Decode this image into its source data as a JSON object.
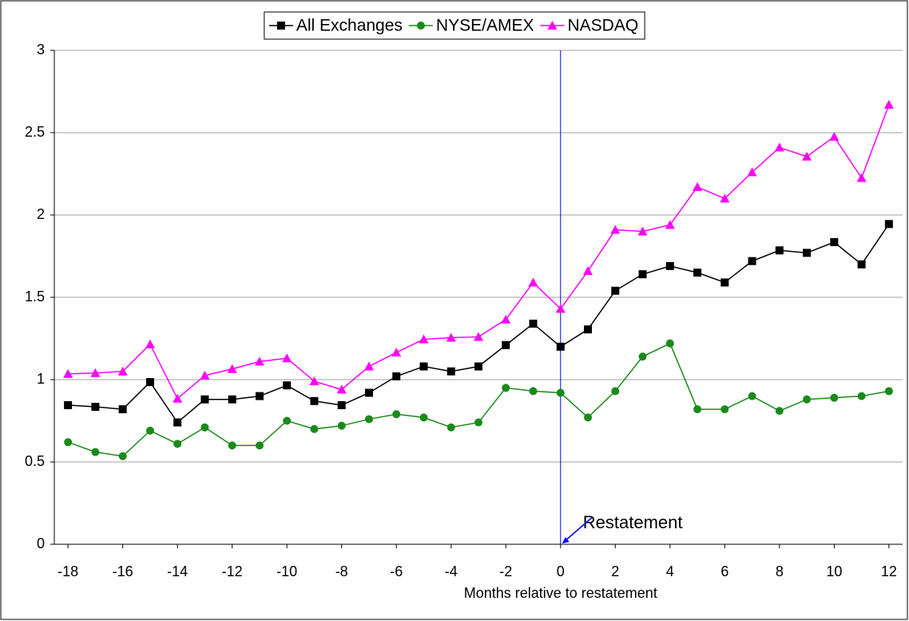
{
  "chart_data": {
    "type": "line",
    "x": [
      -18,
      -17,
      -16,
      -15,
      -14,
      -13,
      -12,
      -11,
      -10,
      -9,
      -8,
      -7,
      -6,
      -5,
      -4,
      -3,
      -2,
      -1,
      0,
      1,
      2,
      3,
      4,
      5,
      6,
      7,
      8,
      9,
      10,
      11,
      12
    ],
    "series": [
      {
        "name": "All Exchanges",
        "color": "#000000",
        "marker": "square",
        "values": [
          0.845,
          0.835,
          0.82,
          0.985,
          0.74,
          0.88,
          0.88,
          0.9,
          0.965,
          0.87,
          0.845,
          0.92,
          1.02,
          1.08,
          1.05,
          1.08,
          1.21,
          1.34,
          1.2,
          1.305,
          1.54,
          1.64,
          1.69,
          1.65,
          1.59,
          1.72,
          1.785,
          1.77,
          1.835,
          1.7,
          1.945
        ]
      },
      {
        "name": "NYSE/AMEX",
        "color": "#1a8a1a",
        "marker": "circle",
        "values": [
          0.62,
          0.56,
          0.535,
          0.69,
          0.61,
          0.71,
          0.6,
          0.6,
          0.75,
          0.7,
          0.72,
          0.76,
          0.79,
          0.77,
          0.71,
          0.74,
          0.95,
          0.93,
          0.92,
          0.77,
          0.93,
          1.14,
          1.22,
          0.82,
          0.82,
          0.9,
          0.81,
          0.88,
          0.89,
          0.9,
          0.93
        ]
      },
      {
        "name": "NASDAQ",
        "color": "#ff00ff",
        "marker": "triangle",
        "values": [
          1.035,
          1.04,
          1.05,
          1.215,
          0.885,
          1.025,
          1.065,
          1.11,
          1.13,
          0.99,
          0.94,
          1.08,
          1.165,
          1.245,
          1.255,
          1.26,
          1.365,
          1.59,
          1.43,
          1.66,
          1.91,
          1.9,
          1.94,
          2.17,
          2.1,
          2.26,
          2.41,
          2.355,
          2.475,
          2.225,
          2.67
        ]
      }
    ],
    "x_label": "Months relative to restatement",
    "xlim": [
      -18.5,
      12.5
    ],
    "xticks": [
      -18,
      -16,
      -14,
      -12,
      -10,
      -8,
      -6,
      -4,
      -2,
      0,
      2,
      4,
      6,
      8,
      10,
      12
    ],
    "ylim": [
      0,
      3
    ],
    "yticks": [
      0,
      0.5,
      1,
      1.5,
      2,
      2.5,
      3
    ],
    "grid": true,
    "legend": "top",
    "annotation": {
      "text": "Restatement",
      "x": 0,
      "y": 0,
      "color": "#0000ff"
    }
  }
}
